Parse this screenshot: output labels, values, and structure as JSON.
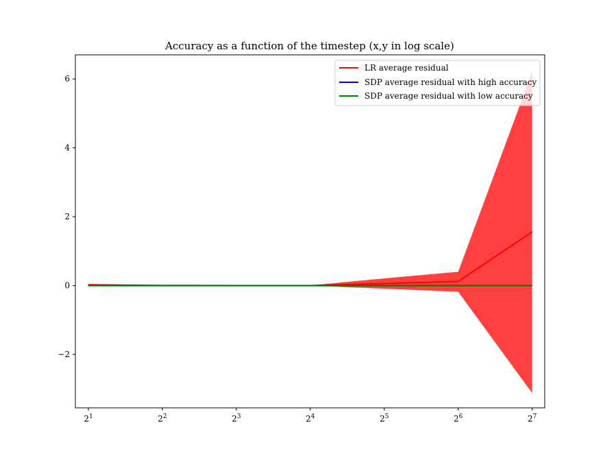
{
  "chart_data": {
    "type": "line",
    "title": "Accuracy as a function of the timestep (x,y in log scale)",
    "xlabel": "",
    "ylabel": "",
    "x_scale": "log2",
    "x": [
      2,
      4,
      8,
      16,
      32,
      64,
      128
    ],
    "x_tick_labels": [
      {
        "base": "2",
        "exp": "1"
      },
      {
        "base": "2",
        "exp": "2"
      },
      {
        "base": "2",
        "exp": "3"
      },
      {
        "base": "2",
        "exp": "4"
      },
      {
        "base": "2",
        "exp": "5"
      },
      {
        "base": "2",
        "exp": "6"
      },
      {
        "base": "2",
        "exp": "7"
      }
    ],
    "y_ticks": [
      -2,
      0,
      2,
      4,
      6
    ],
    "y_tick_labels": [
      "−2",
      "0",
      "2",
      "4",
      "6"
    ],
    "xlim": [
      1.77,
      144
    ],
    "ylim": [
      -3.55,
      6.7
    ],
    "grid": false,
    "legend_position": "top-right",
    "series": [
      {
        "name": "LR average residual",
        "color": "#ff0000",
        "values": [
          0.02,
          0.005,
          0.003,
          0.002,
          0.06,
          0.12,
          1.56
        ],
        "band": {
          "color": "#ff0000",
          "opacity": 0.75,
          "lower": [
            -0.01,
            -0.005,
            -0.003,
            -0.002,
            -0.09,
            -0.18,
            -3.12
          ],
          "upper": [
            0.05,
            0.015,
            0.009,
            0.006,
            0.21,
            0.4,
            6.2
          ]
        }
      },
      {
        "name": "SDP average residual with high accuracy",
        "color": "#0000cc",
        "values": [
          0,
          0,
          0,
          0,
          0,
          0,
          0
        ]
      },
      {
        "name": "SDP average residual with low accuracy",
        "color": "#008000",
        "values": [
          0,
          0,
          0,
          0,
          0,
          0,
          0
        ]
      }
    ]
  }
}
